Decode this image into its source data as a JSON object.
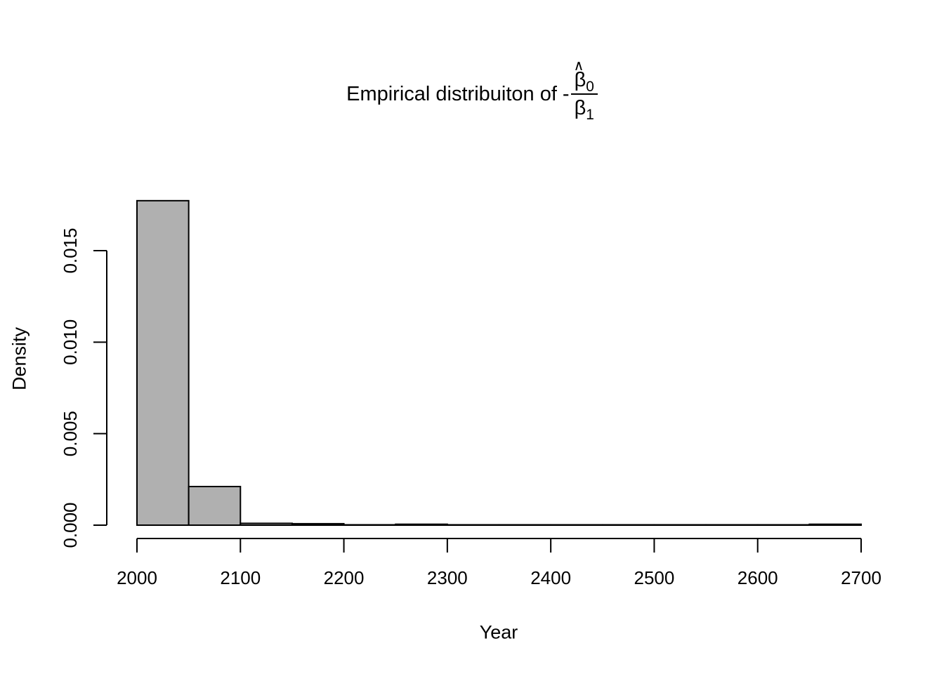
{
  "title": {
    "text": "Empirical distribuiton of",
    "minus": "-",
    "fraction": {
      "numerator_hat": "∧",
      "numerator_symbol": "β",
      "numerator_subscript": "0",
      "denominator_symbol": "β",
      "denominator_subscript": "1"
    }
  },
  "axes": {
    "x": {
      "label": "Year",
      "tick_values": [
        2000,
        2100,
        2200,
        2300,
        2400,
        2500,
        2600,
        2700
      ],
      "tick_labels": [
        "2000",
        "2100",
        "2200",
        "2300",
        "2400",
        "2500",
        "2600",
        "2700"
      ],
      "range": [
        2000,
        2700
      ]
    },
    "y": {
      "label": "Density",
      "tick_values": [
        0,
        0.005,
        0.01,
        0.015
      ],
      "tick_labels": [
        "0.000",
        "0.005",
        "0.010",
        "0.015"
      ],
      "range": [
        0,
        0.015
      ]
    }
  },
  "chart_data": {
    "type": "bar",
    "subtype": "histogram",
    "title": "Empirical distribuiton of -(beta0_hat / beta1)",
    "xlabel": "Year",
    "ylabel": "Density",
    "xlim": [
      2000,
      2700
    ],
    "ylim": [
      0,
      0.015
    ],
    "grid": false,
    "legend": false,
    "bin_width": 50,
    "bin_edges": [
      2000,
      2050,
      2100,
      2150,
      2200,
      2250,
      2300,
      2350,
      2400,
      2450,
      2500,
      2550,
      2600,
      2650,
      2700
    ],
    "densities": [
      0.01773,
      0.00211,
      0.0001,
      8e-05,
      2e-05,
      5e-05,
      2e-05,
      2e-05,
      2e-05,
      2e-05,
      2e-05,
      2e-05,
      2e-05,
      5e-05
    ]
  },
  "colors": {
    "background": "#ffffff",
    "text": "#000000",
    "axis": "#000000",
    "bar_fill": "#b0b0b0",
    "bar_stroke": "#000000"
  }
}
